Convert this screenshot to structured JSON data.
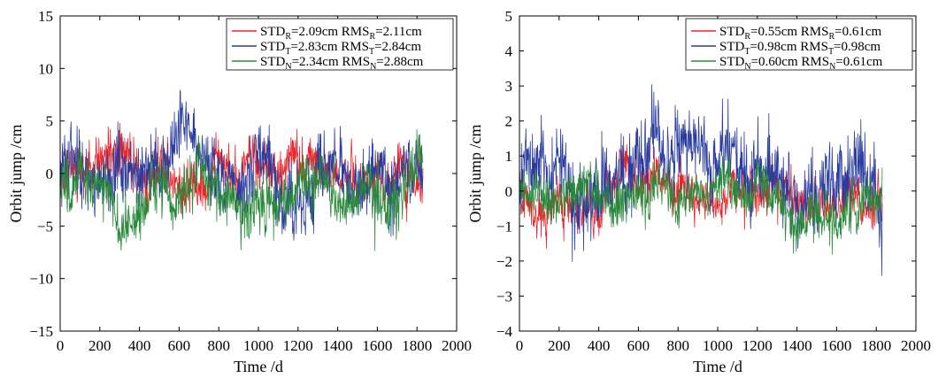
{
  "chart_data": [
    {
      "type": "line",
      "xlabel": "Time /d",
      "ylabel": "Orbit jump /cm",
      "xlim": [
        0,
        2000
      ],
      "ylim": [
        -15,
        15
      ],
      "xticks": [
        0,
        200,
        400,
        600,
        800,
        1000,
        1200,
        1400,
        1600,
        1800,
        2000
      ],
      "yticks": [
        -15,
        -10,
        -5,
        0,
        5,
        10,
        15
      ],
      "xtick_labels": [
        "0",
        "200",
        "400",
        "600",
        "800",
        "1000",
        "1200",
        "1400",
        "1600",
        "1800",
        "2000"
      ],
      "ytick_labels": [
        "−15",
        "−10",
        "−5",
        "0",
        "5",
        "10",
        "15"
      ],
      "grid": false,
      "legend_position": "top-right",
      "x_range_data": [
        0,
        1830
      ],
      "series": [
        {
          "key": "R",
          "color": "#e8252a",
          "std": 2.09,
          "rms": 2.11,
          "mean": 0.3,
          "legend": {
            "a": "STD",
            "sub1": "R",
            "b": "=2.09cm RMS",
            "sub2": "R",
            "c": "=2.11cm"
          }
        },
        {
          "key": "T",
          "color": "#2a3c9e",
          "std": 2.83,
          "rms": 2.84,
          "mean": 0.0,
          "legend": {
            "a": "STD",
            "sub1": "T",
            "b": "=2.83cm RMS",
            "sub2": "T",
            "c": "=2.84cm"
          }
        },
        {
          "key": "N",
          "color": "#2a8a3a",
          "std": 2.34,
          "rms": 2.88,
          "mean": -1.6,
          "legend": {
            "a": "STD",
            "sub1": "N",
            "b": "=2.34cm RMS",
            "sub2": "N",
            "c": "=2.88cm"
          }
        }
      ]
    },
    {
      "type": "line",
      "xlabel": "Time /d",
      "ylabel": "Orbit jump /cm",
      "xlim": [
        0,
        2000
      ],
      "ylim": [
        -4,
        5
      ],
      "xticks": [
        0,
        200,
        400,
        600,
        800,
        1000,
        1200,
        1400,
        1600,
        1800,
        2000
      ],
      "yticks": [
        -4,
        -3,
        -2,
        -1,
        0,
        1,
        2,
        3,
        4,
        5
      ],
      "xtick_labels": [
        "0",
        "200",
        "400",
        "600",
        "800",
        "1000",
        "1200",
        "1400",
        "1600",
        "1800",
        "2000"
      ],
      "ytick_labels": [
        "−4",
        "−3",
        "−2",
        "−1",
        "0",
        "1",
        "2",
        "3",
        "4",
        "5"
      ],
      "grid": false,
      "legend_position": "top-right",
      "x_range_data": [
        0,
        1830
      ],
      "series": [
        {
          "key": "R",
          "color": "#e8252a",
          "std": 0.55,
          "rms": 0.61,
          "mean": -0.25,
          "legend": {
            "a": "STD",
            "sub1": "R",
            "b": "=0.55cm RMS",
            "sub2": "R",
            "c": "=0.61cm"
          }
        },
        {
          "key": "T",
          "color": "#2a3c9e",
          "std": 0.98,
          "rms": 0.98,
          "mean": 0.0,
          "legend": {
            "a": "STD",
            "sub1": "T",
            "b": "=0.98cm RMS",
            "sub2": "T",
            "c": "=0.98cm"
          }
        },
        {
          "key": "N",
          "color": "#2a8a3a",
          "std": 0.6,
          "rms": 0.61,
          "mean": 0.1,
          "legend": {
            "a": "STD",
            "sub1": "N",
            "b": "=0.60cm RMS",
            "sub2": "N",
            "c": "=0.61cm"
          }
        }
      ]
    }
  ]
}
